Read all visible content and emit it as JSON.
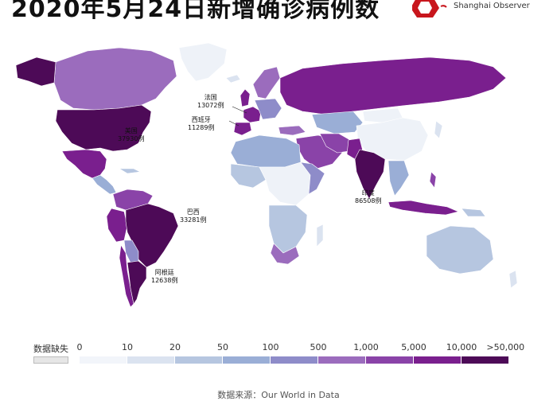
{
  "title": "2020年5月24日新增确诊病例数",
  "logo": {
    "text_en": "Shanghai Observer",
    "color": "#c8161d"
  },
  "legend": {
    "nodata_label": "数据缺失",
    "nodata_color": "#e6e6e6",
    "ticks": [
      "0",
      "10",
      "20",
      "50",
      "100",
      "500",
      "1,000",
      "5,000",
      "10,000",
      ">50,000"
    ],
    "colors": [
      "#f2f5fa",
      "#dbe3f0",
      "#b6c6e0",
      "#9aaed6",
      "#8e8cc9",
      "#9b6cbd",
      "#8a43a8",
      "#7a1f8e",
      "#4d0a57"
    ]
  },
  "annotations": [
    {
      "name": "美国",
      "value": "37930例"
    },
    {
      "name": "法国",
      "value": "13072例"
    },
    {
      "name": "西班牙",
      "value": "11289例"
    },
    {
      "name": "巴西",
      "value": "33281例"
    },
    {
      "name": "阿根廷",
      "value": "12638例"
    },
    {
      "name": "印度",
      "value": "86508例"
    }
  ],
  "source": "数据来源：Our World in Data"
}
